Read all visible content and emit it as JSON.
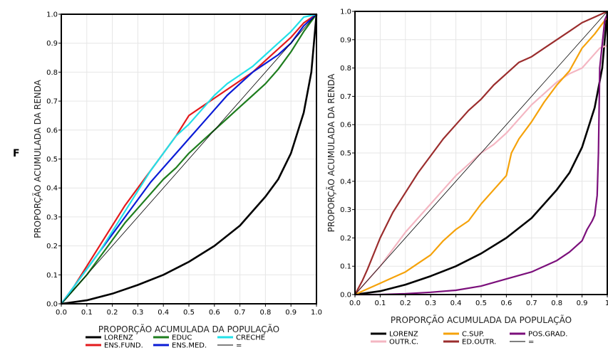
{
  "figure": {
    "panel_letter": "F"
  },
  "chart_data": [
    {
      "type": "line",
      "xlabel": "PROPORÇÃO ACUMULADA DA POPULAÇÃO",
      "ylabel": "PROPORÇÃO ACUMULADA DA RENDA",
      "xlim": [
        0,
        1
      ],
      "ylim": [
        0,
        1
      ],
      "xticks": [
        "0.0",
        "0.1",
        "0.2",
        "0.3",
        "0.4",
        "0.5",
        "0.6",
        "0.7",
        "0.8",
        "0.9",
        "1.0"
      ],
      "yticks": [
        "0.0",
        "0.1",
        "0.2",
        "0.3",
        "0.4",
        "0.5",
        "0.6",
        "0.7",
        "0.8",
        "0.9",
        "1.0"
      ],
      "grid": true,
      "legend_position": "bottom",
      "series": [
        {
          "name": "LORENZ",
          "color": "#000000",
          "x": [
            0,
            0.1,
            0.2,
            0.3,
            0.4,
            0.5,
            0.6,
            0.7,
            0.8,
            0.85,
            0.9,
            0.95,
            0.98,
            1.0
          ],
          "y": [
            0,
            0.012,
            0.035,
            0.065,
            0.1,
            0.145,
            0.2,
            0.27,
            0.37,
            0.43,
            0.52,
            0.66,
            0.8,
            1.0
          ]
        },
        {
          "name": "ENS.FUND.",
          "color": "#e31a1c",
          "x": [
            0,
            0.05,
            0.1,
            0.15,
            0.2,
            0.25,
            0.3,
            0.35,
            0.4,
            0.45,
            0.5,
            0.55,
            0.6,
            0.65,
            0.7,
            0.75,
            0.8,
            0.85,
            0.9,
            0.95,
            1.0
          ],
          "y": [
            0,
            0.06,
            0.13,
            0.2,
            0.27,
            0.34,
            0.4,
            0.46,
            0.52,
            0.58,
            0.65,
            0.68,
            0.71,
            0.74,
            0.77,
            0.8,
            0.84,
            0.88,
            0.92,
            0.97,
            1.0
          ]
        },
        {
          "name": "EDUC",
          "color": "#1e7d1e",
          "x": [
            0,
            0.05,
            0.1,
            0.15,
            0.2,
            0.25,
            0.3,
            0.35,
            0.4,
            0.45,
            0.5,
            0.55,
            0.6,
            0.65,
            0.7,
            0.75,
            0.8,
            0.85,
            0.9,
            0.95,
            1.0
          ],
          "y": [
            0,
            0.05,
            0.1,
            0.16,
            0.22,
            0.28,
            0.33,
            0.38,
            0.43,
            0.47,
            0.52,
            0.56,
            0.6,
            0.64,
            0.68,
            0.72,
            0.76,
            0.81,
            0.87,
            0.94,
            1.0
          ]
        },
        {
          "name": "ENS.MED.",
          "color": "#0a1bd6",
          "x": [
            0,
            0.05,
            0.1,
            0.15,
            0.2,
            0.25,
            0.3,
            0.35,
            0.4,
            0.45,
            0.5,
            0.55,
            0.6,
            0.65,
            0.7,
            0.75,
            0.8,
            0.85,
            0.9,
            0.95,
            1.0
          ],
          "y": [
            0,
            0.06,
            0.12,
            0.18,
            0.24,
            0.3,
            0.36,
            0.42,
            0.47,
            0.52,
            0.57,
            0.62,
            0.67,
            0.72,
            0.76,
            0.8,
            0.83,
            0.86,
            0.9,
            0.96,
            1.0
          ]
        },
        {
          "name": "CRECHE",
          "color": "#22e0e8",
          "x": [
            0,
            0.05,
            0.1,
            0.15,
            0.2,
            0.25,
            0.3,
            0.35,
            0.4,
            0.45,
            0.5,
            0.55,
            0.6,
            0.65,
            0.7,
            0.75,
            0.8,
            0.85,
            0.9,
            0.95,
            1.0
          ],
          "y": [
            0,
            0.06,
            0.12,
            0.18,
            0.25,
            0.32,
            0.39,
            0.46,
            0.52,
            0.58,
            0.62,
            0.67,
            0.72,
            0.76,
            0.79,
            0.82,
            0.86,
            0.9,
            0.94,
            0.99,
            1.0
          ]
        },
        {
          "name": "=",
          "color": "#000000",
          "x": [
            0,
            1
          ],
          "y": [
            0,
            1
          ]
        }
      ]
    },
    {
      "type": "line",
      "xlabel": "PROPORÇÃO ACUMULADA DA POPULAÇÃO",
      "ylabel": "PROPORÇÃO ACUMULADA DA RENDA",
      "xlim": [
        0,
        1
      ],
      "ylim": [
        0,
        1
      ],
      "xticks": [
        "0.0",
        "0.1",
        "0.2",
        "0.3",
        "0.4",
        "0.5",
        "0.6",
        "0.7",
        "0.8",
        "0.9",
        "1"
      ],
      "yticks": [
        "0.0",
        "0.1",
        "0.2",
        "0.3",
        "0.4",
        "0.5",
        "0.6",
        "0.7",
        "0.8",
        "0.9",
        "1.0"
      ],
      "grid": true,
      "legend_position": "bottom",
      "series": [
        {
          "name": "LORENZ",
          "color": "#000000",
          "x": [
            0,
            0.1,
            0.2,
            0.3,
            0.4,
            0.5,
            0.6,
            0.7,
            0.8,
            0.85,
            0.9,
            0.95,
            0.98,
            1.0
          ],
          "y": [
            0,
            0.012,
            0.035,
            0.065,
            0.1,
            0.145,
            0.2,
            0.27,
            0.37,
            0.43,
            0.52,
            0.66,
            0.8,
            1.0
          ]
        },
        {
          "name": "OUTR.C.",
          "color": "#f4b6c2",
          "x": [
            0,
            0.05,
            0.1,
            0.15,
            0.2,
            0.25,
            0.3,
            0.35,
            0.4,
            0.45,
            0.5,
            0.55,
            0.6,
            0.65,
            0.7,
            0.75,
            0.8,
            0.85,
            0.9,
            0.95,
            0.97,
            1.0
          ],
          "y": [
            0,
            0.05,
            0.1,
            0.16,
            0.22,
            0.27,
            0.32,
            0.37,
            0.42,
            0.46,
            0.5,
            0.53,
            0.57,
            0.62,
            0.67,
            0.71,
            0.75,
            0.78,
            0.8,
            0.85,
            0.87,
            0.88
          ]
        },
        {
          "name": "C.SUP.",
          "color": "#f5a20a",
          "x": [
            0,
            0.05,
            0.1,
            0.15,
            0.2,
            0.25,
            0.3,
            0.35,
            0.4,
            0.45,
            0.5,
            0.55,
            0.6,
            0.62,
            0.65,
            0.7,
            0.75,
            0.8,
            0.85,
            0.9,
            0.95,
            1.0
          ],
          "y": [
            0,
            0.02,
            0.04,
            0.06,
            0.08,
            0.11,
            0.14,
            0.19,
            0.23,
            0.26,
            0.32,
            0.37,
            0.42,
            0.5,
            0.55,
            0.61,
            0.68,
            0.74,
            0.79,
            0.87,
            0.92,
            0.98
          ]
        },
        {
          "name": "ED.OUTR.",
          "color": "#9b2d2d",
          "x": [
            0,
            0.03,
            0.05,
            0.1,
            0.15,
            0.2,
            0.25,
            0.3,
            0.35,
            0.4,
            0.45,
            0.5,
            0.55,
            0.6,
            0.65,
            0.7,
            0.75,
            0.8,
            0.85,
            0.9,
            0.95,
            1.0
          ],
          "y": [
            0,
            0.05,
            0.09,
            0.2,
            0.29,
            0.36,
            0.43,
            0.49,
            0.55,
            0.6,
            0.65,
            0.69,
            0.74,
            0.78,
            0.82,
            0.84,
            0.87,
            0.9,
            0.93,
            0.96,
            0.98,
            1.0
          ]
        },
        {
          "name": "POS.GRAD.",
          "color": "#7b0f7b",
          "x": [
            0,
            0.1,
            0.2,
            0.3,
            0.4,
            0.5,
            0.6,
            0.7,
            0.75,
            0.8,
            0.85,
            0.9,
            0.92,
            0.94,
            0.95,
            0.96,
            0.965,
            0.97,
            0.99,
            1.0
          ],
          "y": [
            0,
            0.0,
            0.003,
            0.008,
            0.015,
            0.03,
            0.055,
            0.08,
            0.1,
            0.12,
            0.15,
            0.19,
            0.23,
            0.26,
            0.28,
            0.35,
            0.5,
            0.8,
            0.97,
            0.99
          ]
        },
        {
          "name": "=",
          "color": "#000000",
          "x": [
            0,
            1
          ],
          "y": [
            0,
            1
          ]
        }
      ]
    }
  ]
}
